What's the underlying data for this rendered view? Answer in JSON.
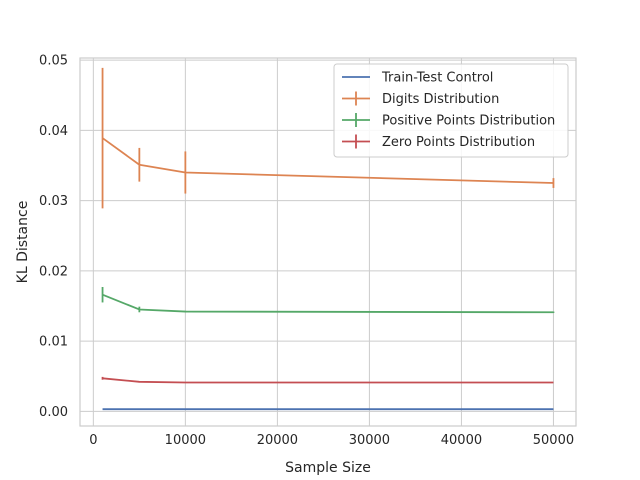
{
  "chart_data": {
    "type": "line",
    "xlabel": "Sample Size",
    "ylabel": "KL Distance",
    "xlim": [
      -1450,
      52450
    ],
    "ylim": [
      -0.00209,
      0.0503
    ],
    "xticks": [
      0,
      10000,
      20000,
      30000,
      40000,
      50000
    ],
    "xtick_labels": [
      "0",
      "10000",
      "20000",
      "30000",
      "40000",
      "50000"
    ],
    "yticks": [
      0.0,
      0.01,
      0.02,
      0.03,
      0.04,
      0.05
    ],
    "ytick_labels": [
      "0.00",
      "0.01",
      "0.02",
      "0.03",
      "0.04",
      "0.05"
    ],
    "grid": true,
    "legend_position": "top-right",
    "x": [
      1000,
      5000,
      10000,
      50000
    ],
    "series": [
      {
        "name": "Train-Test Control",
        "color": "#4c72b0",
        "values": [
          0.0003,
          0.0003,
          0.0003,
          0.0003
        ],
        "errors": [
          0,
          0,
          0,
          0
        ],
        "errorbar": false
      },
      {
        "name": "Digits Distribution",
        "color": "#dd8452",
        "values": [
          0.0389,
          0.0351,
          0.034,
          0.0325
        ],
        "errors": [
          0.01,
          0.0024,
          0.003,
          0.0007
        ],
        "errorbar": true
      },
      {
        "name": "Positive Points Distribution",
        "color": "#55a868",
        "values": [
          0.0166,
          0.0145,
          0.0142,
          0.0141
        ],
        "errors": [
          0.0011,
          0.0004,
          0.0001,
          0.0001
        ],
        "errorbar": true
      },
      {
        "name": "Zero Points Distribution",
        "color": "#c44e52",
        "values": [
          0.0047,
          0.0042,
          0.0041,
          0.0041
        ],
        "errors": [
          0.0002,
          0.0001,
          0.0,
          0.0
        ],
        "errorbar": true
      }
    ]
  }
}
